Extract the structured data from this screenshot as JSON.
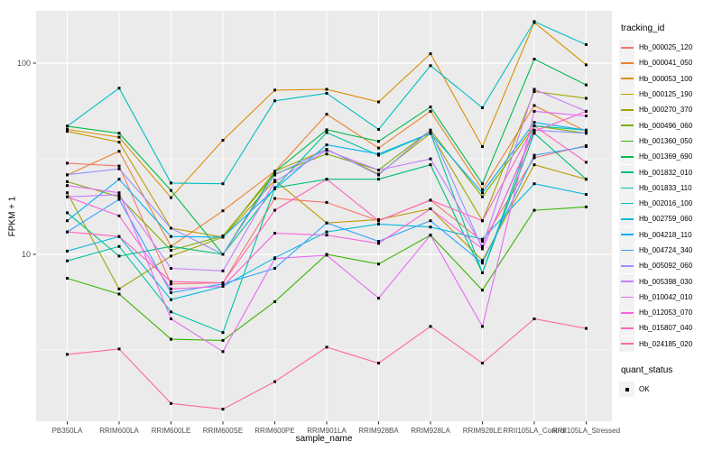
{
  "figure": {
    "background": "#FFFFFF",
    "panel_background": "#EBEBEB",
    "grid_color": "#FFFFFF",
    "tick_color": "#333333",
    "tick_label_color": "#4D4D4D",
    "point_color": "#000000",
    "legend_key_fill": "#F2F2F2"
  },
  "legend": {
    "tracking_title": "tracking_id",
    "quant_title": "quant_status",
    "quant_value": "OK"
  },
  "chart_data": {
    "type": "line",
    "title": "",
    "xlabel": "sample_name",
    "ylabel": "FPKM + 1",
    "y_scale": "log10",
    "y_ticks": [
      10,
      100
    ],
    "y_minor_breaks": [
      3.162,
      31.62
    ],
    "ylim": [
      1.3,
      190
    ],
    "grid": true,
    "legend_position": "right",
    "categories": [
      "PB350LA",
      "RRIM600LA",
      "RRIM600LE",
      "RRIM600SE",
      "RRIM600PE",
      "RRIM901LA",
      "RRIM928BA",
      "RRIM928LA",
      "RRIM928LE",
      "RRII105LA_Control",
      "RRII105LA_Stressed"
    ],
    "series": [
      {
        "name": "Hb_000025_120",
        "color": "#F8766D",
        "values": [
          30,
          29,
          7,
          7.1,
          19.6,
          18.7,
          15,
          19.2,
          11.7,
          32,
          37
        ]
      },
      {
        "name": "Hb_000041_050",
        "color": "#EA8331",
        "values": [
          26,
          34.6,
          11,
          16.9,
          27.2,
          54,
          36,
          56,
          21.8,
          60,
          44
        ]
      },
      {
        "name": "Hb_000053_100",
        "color": "#D89000",
        "values": [
          45,
          41,
          19.8,
          39.5,
          72.3,
          73,
          62.7,
          112,
          36.6,
          163,
          98
        ]
      },
      {
        "name": "Hb_000125_190",
        "color": "#C09B00",
        "values": [
          44,
          38.6,
          13.7,
          12.3,
          24.4,
          14.6,
          15.2,
          17.3,
          9.3,
          29.4,
          24.7
        ]
      },
      {
        "name": "Hb_000270_370",
        "color": "#A3A500",
        "values": [
          21,
          6.6,
          9.8,
          12.3,
          27.2,
          35.4,
          26.3,
          43,
          15,
          71,
          65.5
        ]
      },
      {
        "name": "Hb_000496_060",
        "color": "#7CAE00",
        "values": [
          24,
          20,
          10.5,
          12.5,
          26.3,
          33.5,
          27.6,
          44.6,
          20,
          47,
          43
        ]
      },
      {
        "name": "Hb_001360_050",
        "color": "#39B600",
        "values": [
          7.5,
          6.2,
          3.6,
          3.55,
          5.66,
          10,
          8.9,
          12.6,
          6.5,
          17,
          17.7
        ]
      },
      {
        "name": "Hb_001369_690",
        "color": "#00BB4E",
        "values": [
          46.8,
          43,
          21.6,
          10,
          27,
          44.8,
          39,
          59,
          23.4,
          105,
          77
        ]
      },
      {
        "name": "Hb_001832_010",
        "color": "#00BF7D",
        "values": [
          16.5,
          9.8,
          11,
          10,
          22.3,
          24.7,
          24.7,
          29.4,
          8,
          43,
          24.7
        ]
      },
      {
        "name": "Hb_001833_110",
        "color": "#00C1A3",
        "values": [
          9.25,
          11,
          5,
          3.9,
          22.3,
          43.4,
          33,
          43,
          8,
          47,
          44.6
        ]
      },
      {
        "name": "Hb_002016_100",
        "color": "#00BFC4",
        "values": [
          46.8,
          74,
          23.6,
          23.4,
          63.5,
          69.6,
          45,
          97,
          58.5,
          165,
          125
        ]
      },
      {
        "name": "Hb_002759_060",
        "color": "#00BAE0",
        "values": [
          10.4,
          12.4,
          5.8,
          6.8,
          9.6,
          13.1,
          14.4,
          13.9,
          12,
          23.4,
          20.6
        ]
      },
      {
        "name": "Hb_004218_110",
        "color": "#00B0F6",
        "values": [
          15,
          24.7,
          12.4,
          12.3,
          22,
          37.4,
          33.5,
          43,
          21,
          49,
          44.6
        ]
      },
      {
        "name": "Hb_004724_340",
        "color": "#35A2FF",
        "values": [
          13.1,
          19.4,
          6.3,
          7,
          8.45,
          14.6,
          11.7,
          15,
          9,
          33,
          36.6
        ]
      },
      {
        "name": "Hb_005092_060",
        "color": "#9590FF",
        "values": [
          26.1,
          28,
          13.7,
          10,
          26,
          35.4,
          26,
          44.6,
          10.7,
          44.6,
          43
        ]
      },
      {
        "name": "Hb_005398_030",
        "color": "#C77CFF",
        "values": [
          20,
          20.5,
          8.45,
          8.2,
          24,
          35,
          27.6,
          31.6,
          11,
          73,
          56
        ]
      },
      {
        "name": "Hb_010042_010",
        "color": "#E76BF3",
        "values": [
          22.9,
          21,
          4.6,
          3.1,
          9.5,
          9.9,
          5.9,
          12.6,
          4.2,
          56,
          53
        ]
      },
      {
        "name": "Hb_012053_070",
        "color": "#FA62DB",
        "values": [
          20,
          15.9,
          6.6,
          6.8,
          12.9,
          12.6,
          11.4,
          17.3,
          10.7,
          44,
          56
        ]
      },
      {
        "name": "Hb_015807_040",
        "color": "#FF62BC",
        "values": [
          13.1,
          12.4,
          7.2,
          7.1,
          17,
          24.7,
          15,
          19.2,
          15,
          47,
          30.3
        ]
      },
      {
        "name": "Hb_024185_020",
        "color": "#FF6A98",
        "values": [
          3,
          3.2,
          1.66,
          1.55,
          2.16,
          3.27,
          2.7,
          4.2,
          2.7,
          4.6,
          4.1
        ]
      }
    ]
  }
}
